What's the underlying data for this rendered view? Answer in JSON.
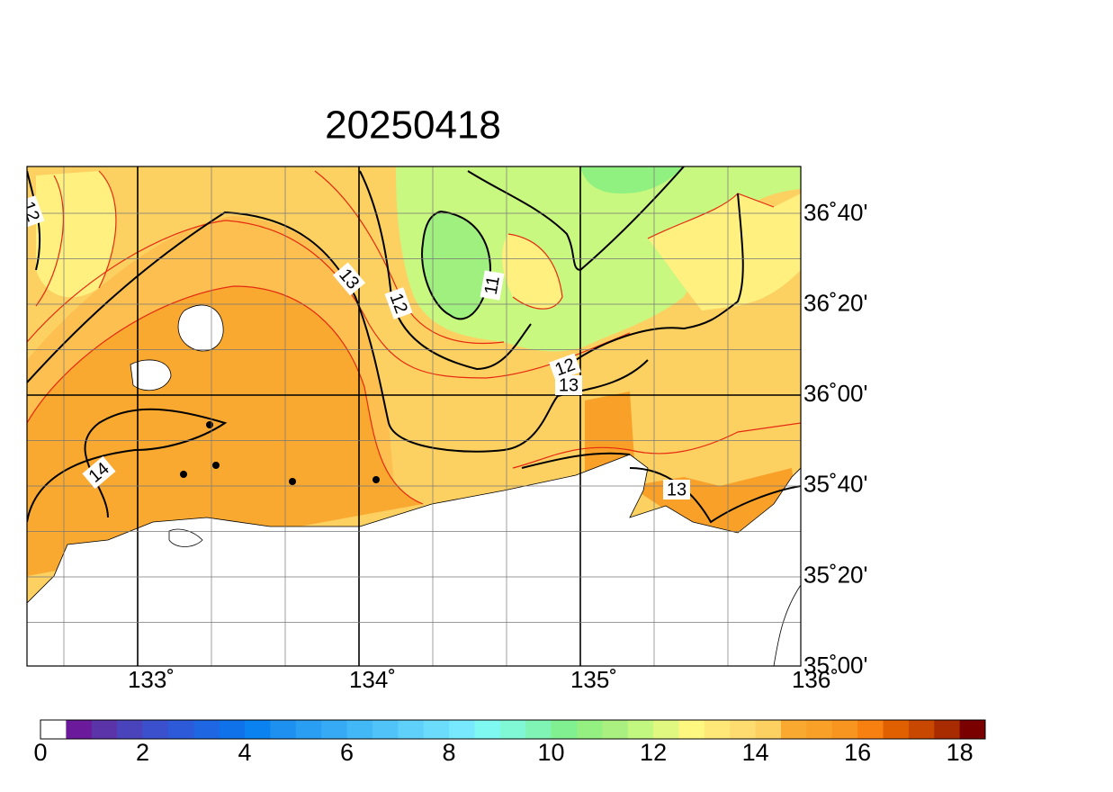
{
  "title": "20250418",
  "lon_labels": [
    "133˚",
    "134˚",
    "135˚",
    "136˚"
  ],
  "lat_labels": [
    "36˚40'",
    "36˚20'",
    "36˚00'",
    "35˚40'",
    "35˚20'",
    "35˚00'"
  ],
  "contour_labels": [
    "12",
    "13",
    "12",
    "11",
    "12",
    "13",
    "14",
    "13"
  ],
  "colorbar": {
    "range": [
      0,
      18.5
    ],
    "ticks": [
      0,
      2,
      4,
      6,
      8,
      10,
      12,
      14,
      16,
      18
    ],
    "colors": [
      "#ffffff",
      "#6a1a9a",
      "#5a34a8",
      "#4a44bc",
      "#3a50cc",
      "#2c5ad8",
      "#1e66e2",
      "#1072ea",
      "#0a82f0",
      "#1e90f0",
      "#2a9ef2",
      "#36aaf4",
      "#42b8f6",
      "#50c4f8",
      "#5ed0fa",
      "#6cdcfc",
      "#78e8fe",
      "#7ef8f0",
      "#80f8d6",
      "#80f4b4",
      "#80f090",
      "#94f080",
      "#aaf080",
      "#c2f880",
      "#e0f880",
      "#fff880",
      "#ffe878",
      "#ffdc70",
      "#fdd062",
      "#f9a830",
      "#f8a028",
      "#f89420",
      "#f88010",
      "#e06000",
      "#c84800",
      "#a82c00",
      "#7a0000"
    ]
  }
}
